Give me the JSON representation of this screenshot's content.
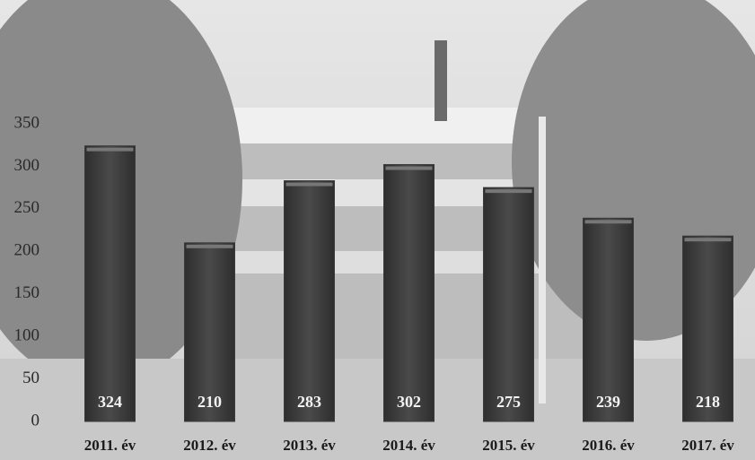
{
  "chart_data": {
    "type": "bar",
    "categories": [
      "2011. év",
      "2012. év",
      "2013. év",
      "2014. év",
      "2015. év",
      "2016. év",
      "2017. év"
    ],
    "values": [
      324,
      210,
      283,
      302,
      275,
      239,
      218
    ],
    "color": "#3b3b3b",
    "ylim": [
      0,
      350
    ],
    "yticks": [
      0,
      50,
      100,
      150,
      200,
      250,
      300,
      350
    ],
    "grid": false
  }
}
